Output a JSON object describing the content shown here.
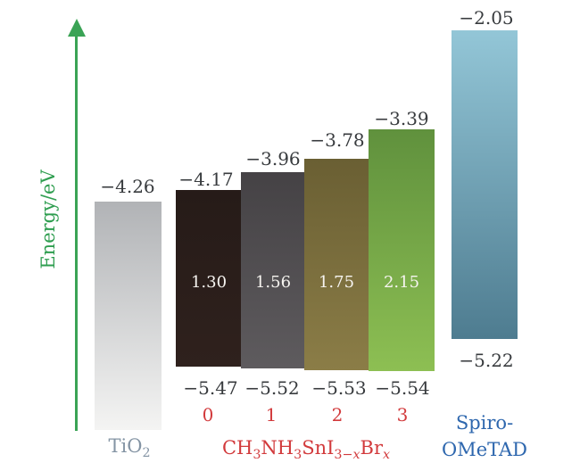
{
  "colors": {
    "axis_green": "#2f9e50",
    "arrow_green": "#3aa355",
    "x_value_red": "#d23a3c",
    "spiro_blue": "#2e67ae",
    "tio2_label_gray": "#8494a4",
    "energy_label_dark": "#383b3e",
    "gap_text_white": "#f6f4f0"
  },
  "chart_data": {
    "type": "bar",
    "subtype": "energy-level-band-alignment-diagram",
    "title": "",
    "ylabel": "Energy/eV",
    "unit": "eV",
    "grid": false,
    "legend": false,
    "x_axis": {
      "series_label": "CH3NH3SnI3-xBrx",
      "series_label_html": "CH<sub>3</sub>NH<sub>3</sub>SnI<sub>3&#8722;<i>x</i></sub>Br<sub><i>x</i></sub>",
      "values": [
        "0",
        "1",
        "2",
        "3"
      ]
    },
    "bars": [
      {
        "material": "TiO2",
        "material_html": "TiO<sub>2</sub>",
        "top_ev": -4.26,
        "bottom_ev": null,
        "gap_ev": null,
        "color_top": "#b1b3b6",
        "color_bottom": "#f4f4f3",
        "labels": {
          "top": "−4.26",
          "material": "TiO2"
        }
      },
      {
        "material": "CH3NH3SnI3 (x=0)",
        "x": "0",
        "top_ev": -4.17,
        "bottom_ev": -5.47,
        "gap_ev": 1.3,
        "color_top": "#261b18",
        "color_bottom": "#2f211d",
        "labels": {
          "top": "−4.17",
          "bottom": "−5.47",
          "gap": "1.30",
          "x": "0"
        }
      },
      {
        "material": "CH3NH3SnI2Br (x=1)",
        "x": "1",
        "top_ev": -3.96,
        "bottom_ev": -5.52,
        "gap_ev": 1.56,
        "color_top": "#454245",
        "color_bottom": "#5e5b5e",
        "labels": {
          "top": "−3.96",
          "bottom": "−5.52",
          "gap": "1.56",
          "x": "1"
        }
      },
      {
        "material": "CH3NH3SnIBr2 (x=2)",
        "x": "2",
        "top_ev": -3.78,
        "bottom_ev": -5.53,
        "gap_ev": 1.75,
        "color_top": "#6a5f33",
        "color_bottom": "#8b7d47",
        "labels": {
          "top": "−3.78",
          "bottom": "−5.53",
          "gap": "1.75",
          "x": "2"
        }
      },
      {
        "material": "CH3NH3SnBr3 (x=3)",
        "x": "3",
        "top_ev": -3.39,
        "bottom_ev": -5.54,
        "gap_ev": 2.15,
        "color_top": "#60913d",
        "color_bottom": "#8dbf53",
        "labels": {
          "top": "−3.39",
          "bottom": "−5.54",
          "gap": "2.15",
          "x": "3"
        }
      },
      {
        "material": "Spiro-OMeTAD",
        "top_ev": -2.05,
        "bottom_ev": -5.22,
        "gap_ev": null,
        "color_top": "#93c6d7",
        "color_bottom": "#4e7c90",
        "labels": {
          "top": "−2.05",
          "bottom": "−5.22",
          "material_line1": "Spiro-",
          "material_line2": "OMeTAD"
        }
      }
    ]
  }
}
